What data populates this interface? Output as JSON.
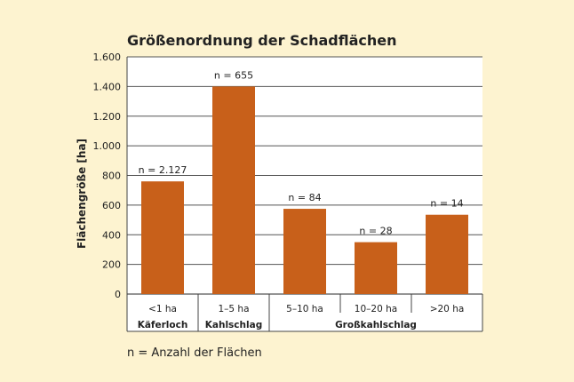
{
  "chart_data": {
    "type": "bar",
    "title": "Größenordnung der Schadflächen",
    "ylabel": "Flächengröße [ha]",
    "xlabel": "",
    "ylim": [
      0,
      1600
    ],
    "yticks": [
      0,
      200,
      400,
      600,
      800,
      1000,
      1200,
      1400,
      1600
    ],
    "ytick_labels": [
      "0",
      "200",
      "400",
      "600",
      "800",
      "1.000",
      "1.200",
      "1.400",
      "1.600"
    ],
    "categories": [
      "<1 ha",
      "1–5 ha",
      "5–10 ha",
      "10–20 ha",
      ">20 ha"
    ],
    "values": [
      760,
      1400,
      575,
      350,
      535
    ],
    "data_labels": [
      "n = 2.127",
      "n = 655",
      "n = 84",
      "n = 28",
      "n = 14"
    ],
    "groups": [
      {
        "label": "Käferloch",
        "from": 0,
        "to": 0
      },
      {
        "label": "Kahlschlag",
        "from": 1,
        "to": 1
      },
      {
        "label": "Großkahlschlag",
        "from": 2,
        "to": 4
      }
    ],
    "grid": true,
    "colors": {
      "bar": "#c8601a",
      "background": "#fdf3d0",
      "plot_background": "#ffffff",
      "grid": "#555555"
    }
  },
  "footnote": "n = Anzahl der Flächen"
}
